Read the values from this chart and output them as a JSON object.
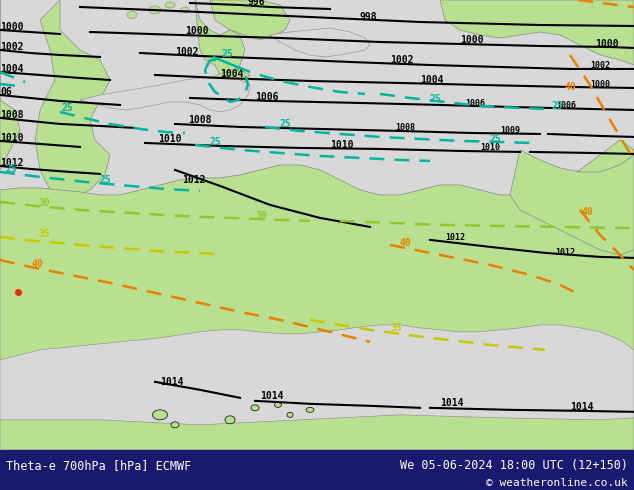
{
  "title_left": "Theta-e 700hPa [hPa] ECMWF",
  "title_right": "We 05-06-2024 18:00 UTC (12+150)",
  "copyright": "© weatheronline.co.uk",
  "bg_sea_color": "#d8d8d8",
  "bg_land_color": "#b8e090",
  "bg_land_dark": "#a0d070",
  "footer_bg": "#191970",
  "footer_text_color": "#ffffff",
  "pressure_color": "#000000",
  "cyan_color": "#00b4a0",
  "green_color": "#90c830",
  "yellow_color": "#c8c800",
  "orange_color": "#e88000",
  "red_color": "#e03000",
  "coast_color": "#888888",
  "figsize": [
    6.34,
    4.9
  ],
  "dpi": 100
}
